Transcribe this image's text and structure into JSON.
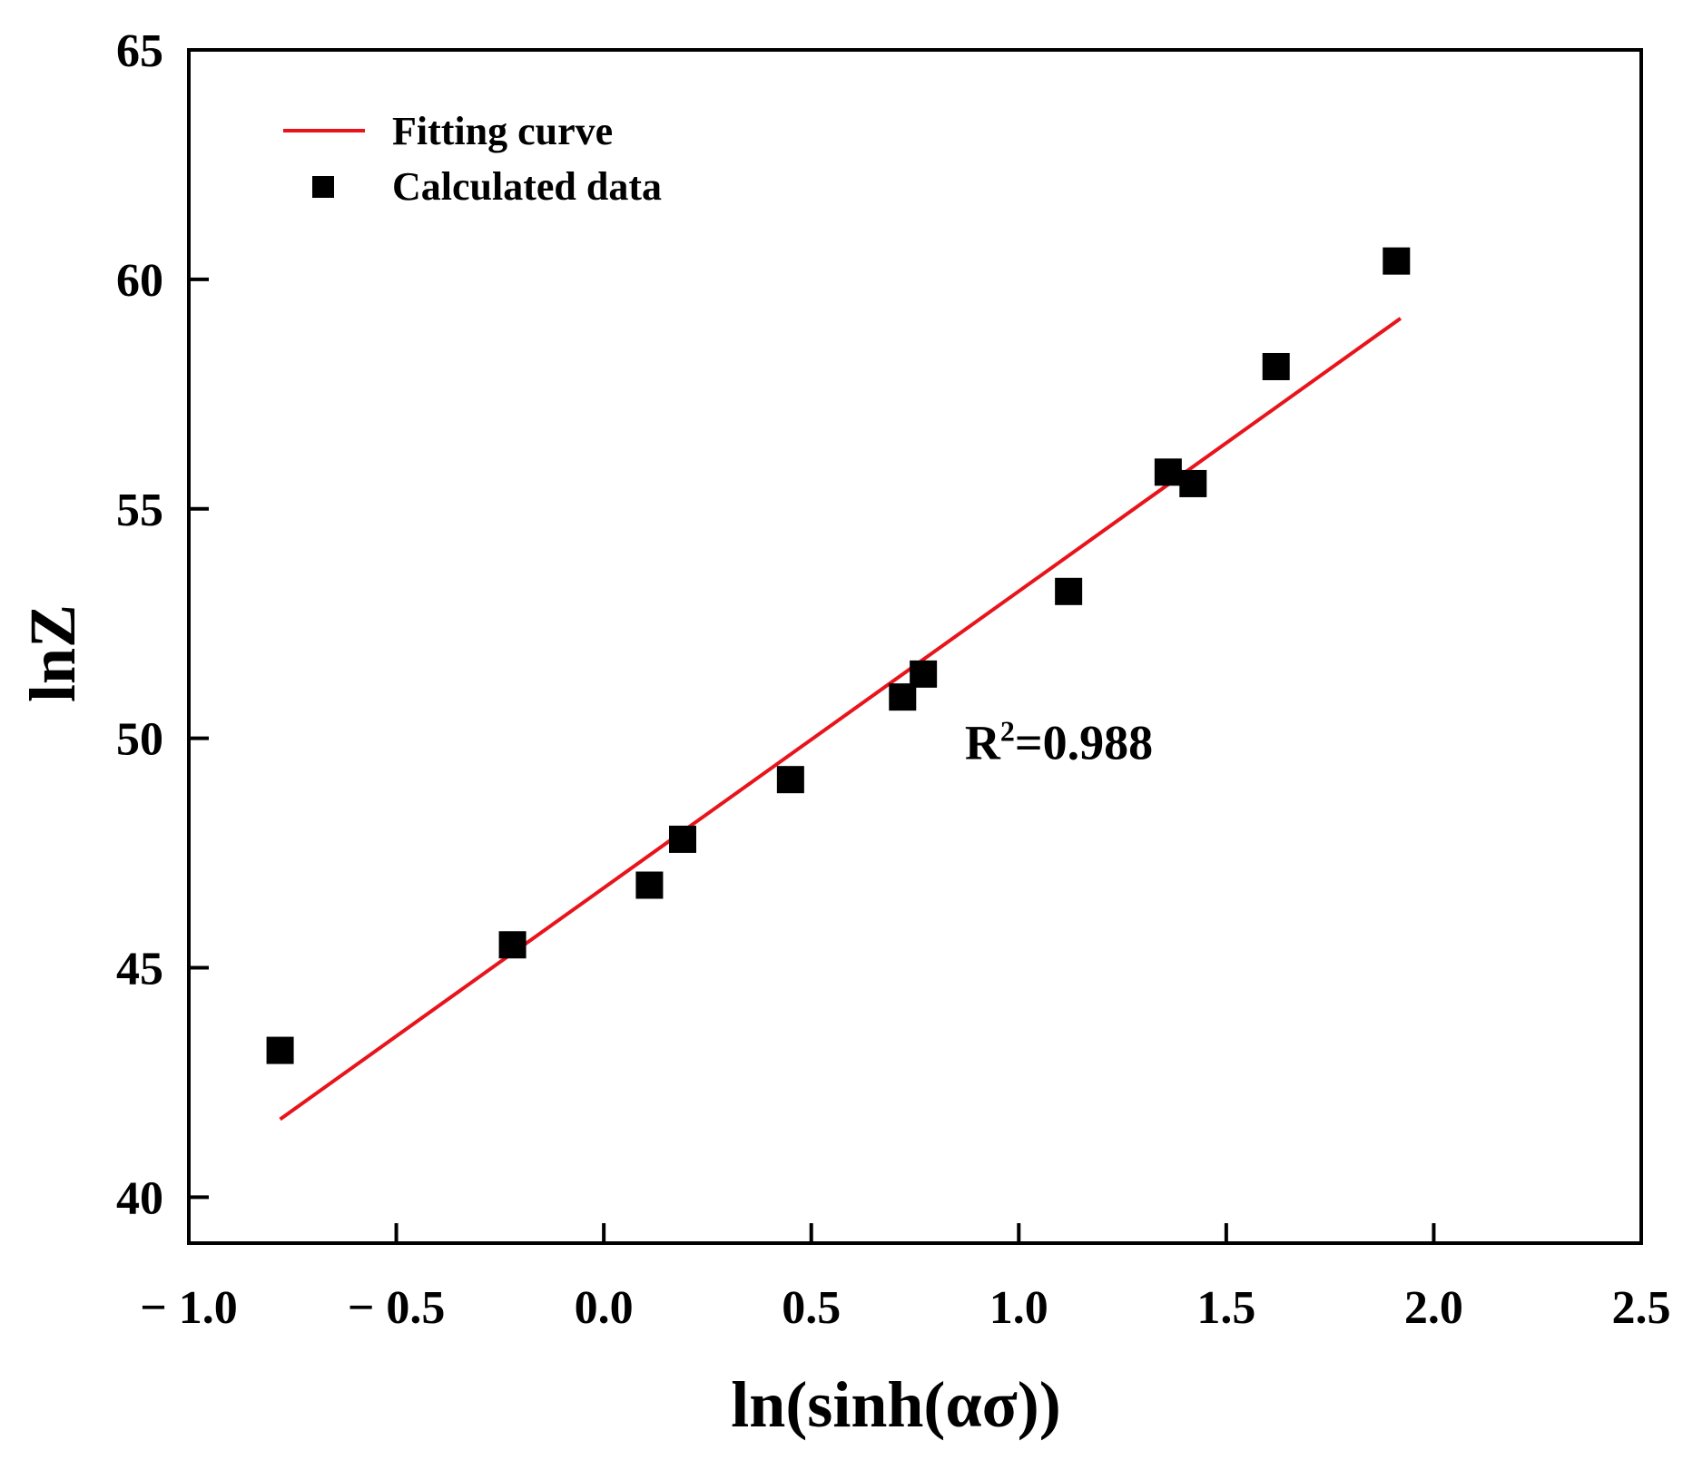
{
  "chart_data": {
    "type": "scatter",
    "title": "",
    "xlabel": "ln(sinh(ασ))",
    "ylabel": "lnZ",
    "xlim": [
      -1.0,
      2.5
    ],
    "ylim": [
      39,
      65
    ],
    "xticks": [
      -1.0,
      -0.5,
      0.0,
      0.5,
      1.0,
      1.5,
      2.0,
      2.5
    ],
    "xtick_labels": [
      "− 1.0",
      "− 0.5",
      "0.0",
      "0.5",
      "1.0",
      "1.5",
      "2.0",
      "2.5"
    ],
    "yticks": [
      40,
      45,
      50,
      55,
      60,
      65
    ],
    "ytick_labels": [
      "40",
      "45",
      "50",
      "55",
      "60",
      "65"
    ],
    "grid": false,
    "legend_position": "top-left",
    "series": [
      {
        "name": "Fitting curve",
        "kind": "line",
        "color": "#e8141b",
        "x": [
          -0.78,
          1.92
        ],
        "y": [
          41.7,
          59.15
        ]
      },
      {
        "name": "Calculated data",
        "kind": "scatter",
        "marker": "square",
        "color": "#000000",
        "x": [
          -0.78,
          -0.22,
          0.11,
          0.19,
          0.45,
          0.72,
          0.77,
          1.12,
          1.36,
          1.42,
          1.62,
          1.91
        ],
        "y": [
          43.2,
          45.5,
          46.8,
          47.8,
          49.1,
          50.9,
          51.4,
          53.2,
          55.8,
          55.55,
          58.1,
          60.4
        ]
      }
    ],
    "annotations": [
      {
        "text": "R",
        "superscript": "2",
        "suffix": "=0.988",
        "x": 0.87,
        "y": 49.9
      }
    ]
  }
}
